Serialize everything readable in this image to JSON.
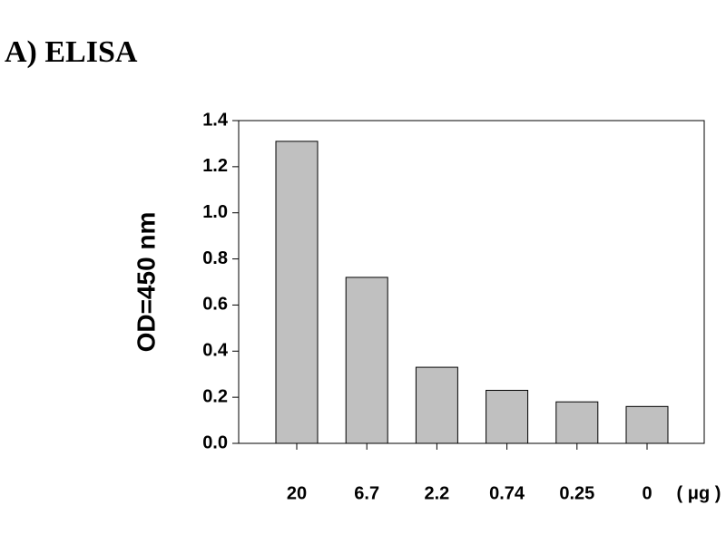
{
  "chart_data": {
    "type": "bar",
    "title": "A) ELISA",
    "y_label": "OD=450 nm",
    "x_label": "( μg )",
    "categories": [
      "20",
      "6.7",
      "2.2",
      "0.74",
      "0.25",
      "0"
    ],
    "values": [
      1.31,
      0.72,
      0.33,
      0.23,
      0.18,
      0.16
    ],
    "color": "#c0c0c0",
    "ylim": [
      0,
      1.4
    ],
    "yticks": [
      {
        "value": 0,
        "label": "0.0"
      },
      0.2,
      0.4,
      0.6,
      0.8,
      {
        "value": 1,
        "label": "1.0"
      },
      1.2,
      1.4
    ],
    "grid": false
  }
}
